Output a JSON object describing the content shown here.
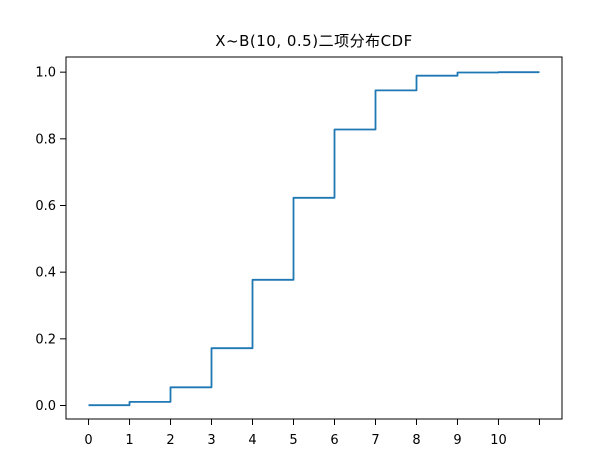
{
  "figure": {
    "background": "#ffffff",
    "spine_color": "#000000",
    "tick_color": "#000000"
  },
  "chart_data": {
    "type": "line",
    "subtype": "step",
    "title": "X~B(10, 0.5)二项分布CDF",
    "xlabel": "",
    "ylabel": "",
    "grid": false,
    "legend": null,
    "line_color": "#1f77b4",
    "x": [
      0,
      1,
      2,
      3,
      4,
      5,
      6,
      7,
      8,
      9,
      10
    ],
    "cdf": [
      0.000977,
      0.010742,
      0.054688,
      0.171875,
      0.376953,
      0.623047,
      0.828125,
      0.945312,
      0.989258,
      0.999023,
      1.0
    ],
    "x_end": 11,
    "xlim": [
      -0.55,
      11.55
    ],
    "ylim": [
      -0.0405,
      1.0455
    ],
    "xtick_values": [
      0,
      1,
      2,
      3,
      4,
      5,
      6,
      7,
      8,
      9,
      10,
      11
    ],
    "xtick_labels": [
      "0",
      "1",
      "2",
      "3",
      "4",
      "5",
      "6",
      "7",
      "8",
      "9",
      "10",
      ""
    ],
    "ytick_values": [
      0.0,
      0.2,
      0.4,
      0.6,
      0.8,
      1.0
    ],
    "ytick_labels": [
      "0.0",
      "0.2",
      "0.4",
      "0.6",
      "0.8",
      "1.0"
    ]
  }
}
